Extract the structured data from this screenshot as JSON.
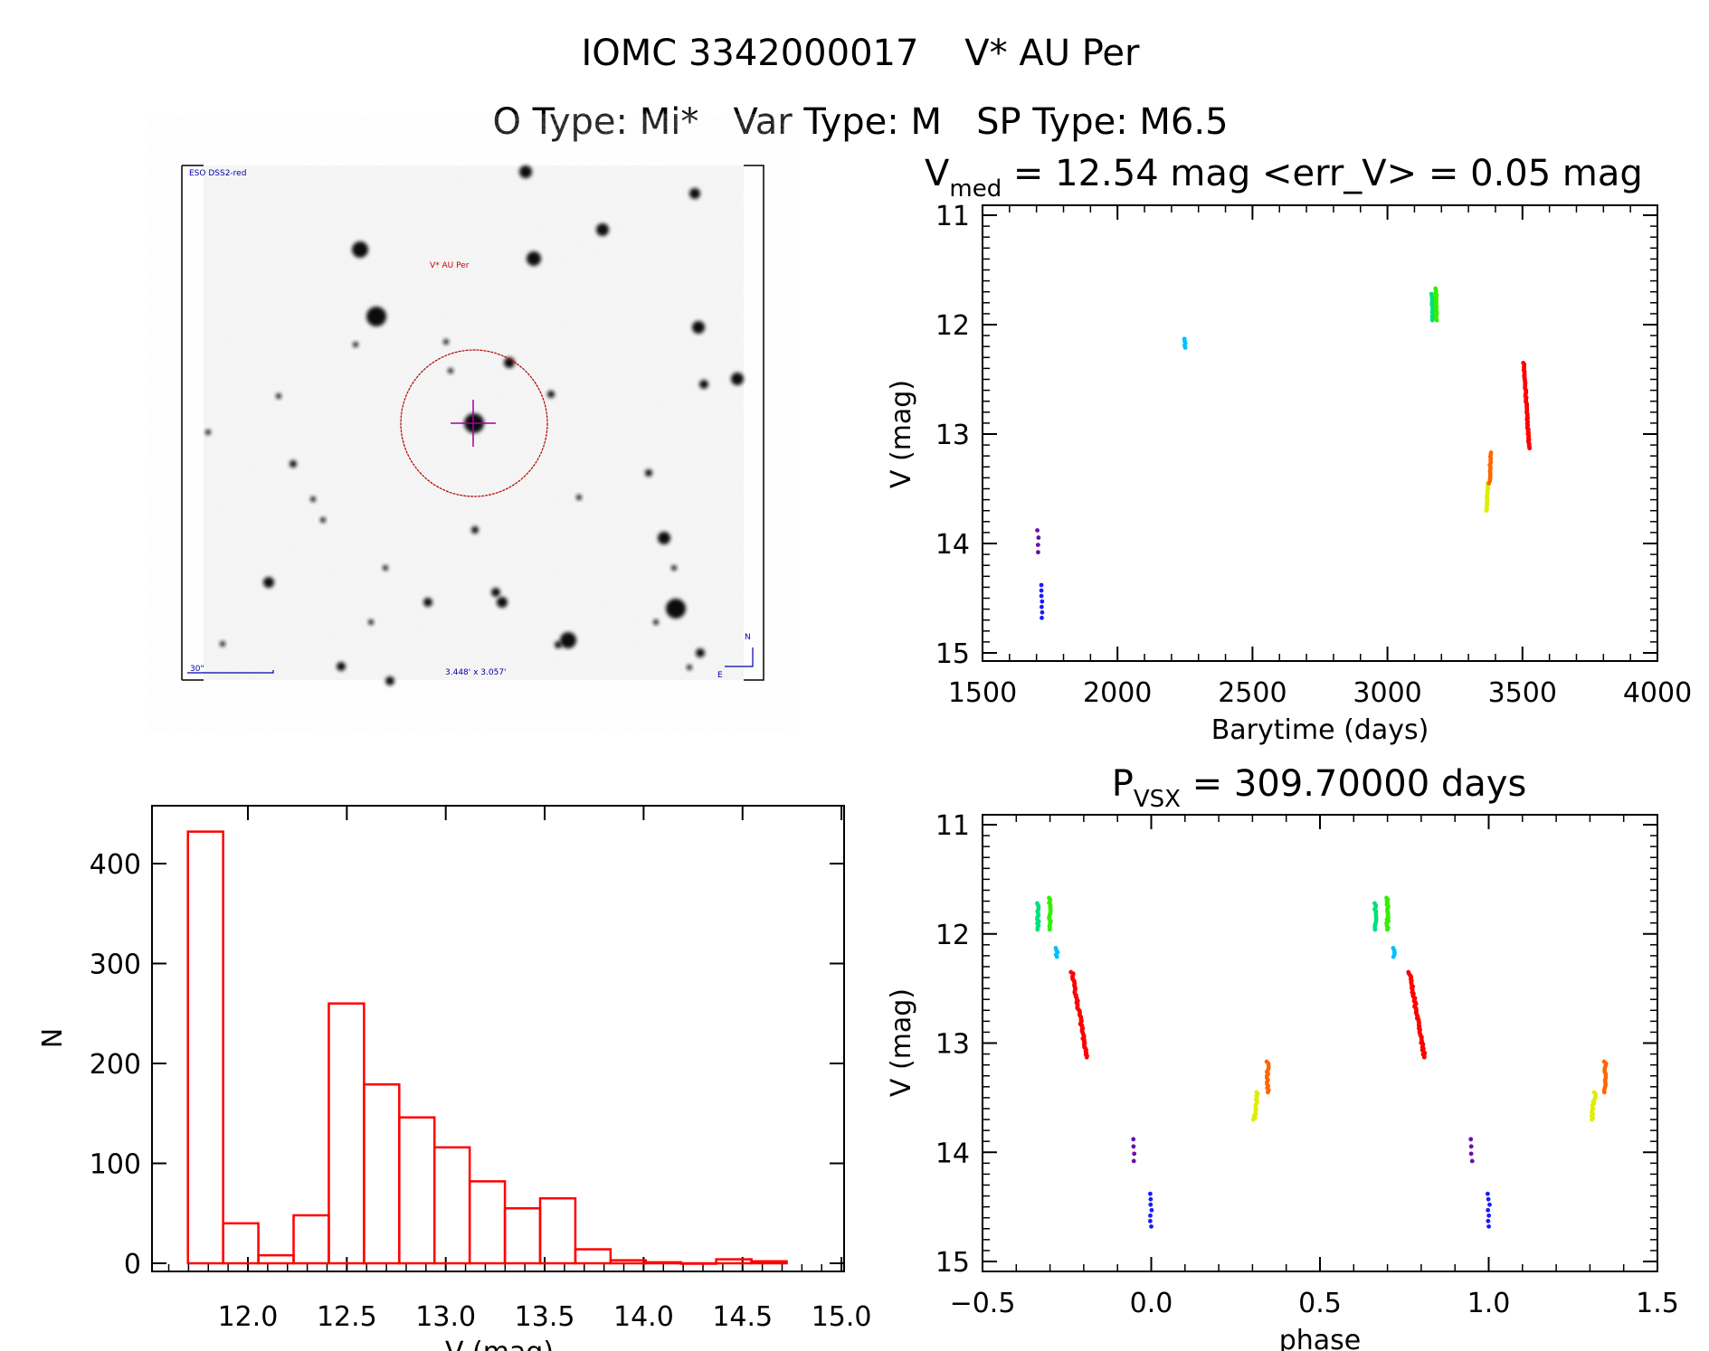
{
  "header": {
    "title": "IOMC 3342000017    V* AU Per",
    "subtitle": "O Type: Mi*   Var Type: M   SP Type: M6.5"
  },
  "finder": {
    "survey": "ESO DSS2-red",
    "target_label": "V* AU Per",
    "scale_label": "30\"",
    "fov_label": "3.448' x 3.057'",
    "north": "N",
    "east": "E"
  },
  "chart_data": [
    {
      "id": "light-curve",
      "type": "scatter",
      "title_main": "V",
      "title_sub": "med",
      "title_rest": " = 12.54 mag <err_V> = 0.05 mag",
      "xlabel": "Barytime (days)",
      "ylabel": "V (mag)",
      "xlim": [
        1500,
        4000
      ],
      "ylim": [
        15,
        11
      ],
      "y_inverted": true,
      "xticks": [
        "1500",
        "2000",
        "2500",
        "3000",
        "3500",
        "4000"
      ],
      "yticks": [
        "11",
        "12",
        "13",
        "14",
        "15"
      ],
      "series": [
        {
          "name": "purple",
          "color": "#6a0dad",
          "t": [
            1705,
            1707
          ],
          "mag": [
            13.88,
            14.08
          ],
          "n": 4
        },
        {
          "name": "blue",
          "color": "#1a1aff",
          "t": [
            1720,
            1720
          ],
          "mag": [
            14.38,
            14.68
          ],
          "n": 7
        },
        {
          "name": "cyan",
          "color": "#00bfff",
          "t": [
            2250,
            2250
          ],
          "mag": [
            12.13,
            12.21
          ],
          "n": 5
        },
        {
          "name": "spring-green",
          "color": "#00e07a",
          "t": [
            3165,
            3167
          ],
          "mag": [
            11.72,
            11.96
          ],
          "n": 14
        },
        {
          "name": "green",
          "color": "#33ee00",
          "t": [
            3180,
            3182
          ],
          "mag": [
            11.67,
            11.96
          ],
          "n": 20
        },
        {
          "name": "yellow",
          "color": "#dfee00",
          "t": [
            3368,
            3372
          ],
          "mag": [
            13.7,
            13.45
          ],
          "n": 16
        },
        {
          "name": "orange",
          "color": "#ff6600",
          "t": [
            3378,
            3382
          ],
          "mag": [
            13.45,
            13.17
          ],
          "n": 16
        },
        {
          "name": "red",
          "color": "#ff0000",
          "t": [
            3505,
            3525
          ],
          "mag": [
            12.35,
            13.13
          ],
          "n": 60
        }
      ]
    },
    {
      "id": "phase-curve",
      "type": "scatter",
      "title_main": "P",
      "title_sub": "VSX",
      "title_rest": " = 309.70000 days",
      "xlabel": "phase",
      "ylabel": "V (mag)",
      "xlim": [
        -0.5,
        1.5
      ],
      "ylim": [
        15,
        11
      ],
      "y_inverted": true,
      "xticks": [
        "−0.5",
        "0.0",
        "0.5",
        "1.0",
        "1.5"
      ],
      "yticks": [
        "11",
        "12",
        "13",
        "14",
        "15"
      ],
      "series": [
        {
          "name": "purple",
          "color": "#6a0dad",
          "phase": [
            -0.05,
            -0.05
          ],
          "mag": [
            13.88,
            14.08
          ],
          "n": 4
        },
        {
          "name": "blue",
          "color": "#1a1aff",
          "phase": [
            0.0,
            0.0
          ],
          "mag": [
            14.38,
            14.68
          ],
          "n": 7
        },
        {
          "name": "cyan",
          "color": "#00bfff",
          "phase": [
            -0.28,
            -0.28
          ],
          "mag": [
            12.13,
            12.21
          ],
          "n": 5
        },
        {
          "name": "spring-green",
          "color": "#00e07a",
          "phase": [
            -0.335,
            -0.335
          ],
          "mag": [
            11.72,
            11.96
          ],
          "n": 14
        },
        {
          "name": "green",
          "color": "#33ee00",
          "phase": [
            -0.3,
            -0.3
          ],
          "mag": [
            11.67,
            11.96
          ],
          "n": 20
        },
        {
          "name": "yellow",
          "color": "#dfee00",
          "phase": [
            0.315,
            0.305
          ],
          "mag": [
            13.45,
            13.7
          ],
          "n": 16
        },
        {
          "name": "orange",
          "color": "#ff6600",
          "phase": [
            0.345,
            0.345
          ],
          "mag": [
            13.17,
            13.45
          ],
          "n": 16
        },
        {
          "name": "red",
          "color": "#ff0000",
          "phase": [
            -0.235,
            -0.19
          ],
          "mag": [
            12.35,
            13.13
          ],
          "n": 60
        }
      ],
      "repeat_phase_offset": 1.0
    },
    {
      "id": "histogram",
      "type": "bar",
      "xlabel": "V (mag)",
      "ylabel": "N",
      "xlim": [
        11.52,
        15.0
      ],
      "ylim": [
        0,
        450
      ],
      "xticks": [
        "12.0",
        "12.5",
        "13.0",
        "13.5",
        "14.0",
        "14.5",
        "15.0"
      ],
      "yticks": [
        "0",
        "100",
        "200",
        "300",
        "400"
      ],
      "bar_color": "#ff0000",
      "bin_start": 11.697,
      "bin_width": 0.178,
      "values": [
        432,
        40,
        8,
        48,
        260,
        179,
        146,
        116,
        82,
        55,
        65,
        14,
        3,
        1,
        0,
        4,
        2
      ]
    }
  ]
}
